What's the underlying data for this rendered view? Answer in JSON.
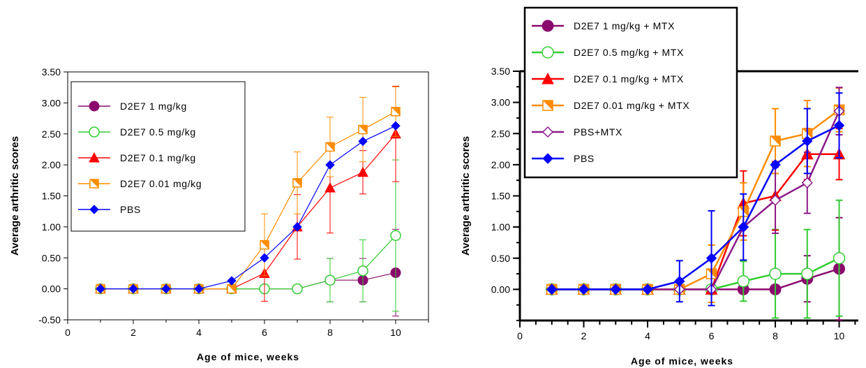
{
  "chart_data": [
    {
      "type": "line",
      "xlabel": "Age of mice, weeks",
      "ylabel": "Average arthritic scores",
      "xlim": [
        0,
        11
      ],
      "ylim": [
        -0.5,
        3.5
      ],
      "xticks": [
        "0",
        "2",
        "4",
        "6",
        "8",
        "10"
      ],
      "yticks": [
        "-0.50",
        "0.00",
        "0.50",
        "1.00",
        "1.50",
        "2.00",
        "2.50",
        "3.00",
        "3.50"
      ],
      "legend_position": "upper-left",
      "x": [
        1,
        2,
        3,
        4,
        5,
        6,
        7,
        8,
        9,
        10
      ],
      "series": [
        {
          "name": "D2E7 1 mg/kg",
          "color": "#8B0A6E",
          "marker": "circle-filled",
          "values": [
            0,
            0,
            0,
            0,
            0,
            0,
            0,
            0.14,
            0.14,
            0.26
          ],
          "error": [
            0,
            0,
            0,
            0,
            0,
            0,
            0,
            0.35,
            0.35,
            0.7
          ]
        },
        {
          "name": "D2E7 0.5 mg/kg",
          "color": "#33CC33",
          "marker": "circle-open",
          "values": [
            0,
            0,
            0,
            0,
            0,
            0,
            0,
            0.14,
            0.29,
            0.86
          ],
          "error": [
            0,
            0,
            0,
            0,
            0,
            0,
            0,
            0.35,
            0.5,
            1.22
          ]
        },
        {
          "name": "D2E7 0.1 mg/kg",
          "color": "#FF0000",
          "marker": "triangle",
          "values": [
            0,
            0,
            0,
            0,
            0,
            0.25,
            1.0,
            1.63,
            1.88,
            2.5
          ],
          "error": [
            0,
            0,
            0,
            0,
            0,
            0.45,
            0.52,
            0.73,
            0.35,
            0.77
          ]
        },
        {
          "name": "D2E7 0.01 mg/kg",
          "color": "#FF8C00",
          "marker": "square-half",
          "values": [
            0,
            0,
            0,
            0,
            0,
            0.71,
            1.71,
            2.29,
            2.57,
            2.86
          ],
          "error": [
            0,
            0,
            0,
            0,
            0,
            0.5,
            0.5,
            0.48,
            0.52,
            0.4
          ]
        },
        {
          "name": "PBS",
          "color": "#0000FF",
          "marker": "diamond",
          "values": [
            0,
            0,
            0,
            0,
            0.13,
            0.5,
            1.0,
            2.0,
            2.38,
            2.63
          ],
          "error": [
            0,
            0,
            0,
            0,
            0,
            0,
            0,
            0,
            0,
            0
          ]
        }
      ]
    },
    {
      "type": "line",
      "xlabel": "Age of mice, weeks",
      "ylabel": "Average arthritic scores",
      "xlim": [
        0,
        10.6
      ],
      "ylim": [
        -0.5,
        3.5
      ],
      "xticks": [
        "0",
        "2",
        "4",
        "6",
        "8",
        "10"
      ],
      "yticks": [
        "0.00",
        "0.50",
        "1.00",
        "1.50",
        "2.00",
        "2.50",
        "3.00",
        "3.50"
      ],
      "legend_position": "upper-left",
      "x": [
        1,
        2,
        3,
        4,
        5,
        6,
        7,
        8,
        9,
        10
      ],
      "series": [
        {
          "name": "D2E7 1 mg/kg + MTX",
          "color": "#8B0A6E",
          "marker": "circle-filled",
          "values": [
            0,
            0,
            0,
            0,
            0,
            0,
            0,
            0,
            0.17,
            0.33
          ],
          "error": [
            0,
            0,
            0,
            0,
            0,
            0,
            0,
            0,
            0.37,
            0.82
          ]
        },
        {
          "name": "D2E7 0.5 mg/kg + MTX",
          "color": "#33CC33",
          "marker": "circle-open",
          "values": [
            0,
            0,
            0,
            0,
            0,
            0,
            0.13,
            0.25,
            0.25,
            0.5
          ],
          "error": [
            0,
            0,
            0,
            0,
            0,
            0,
            0.32,
            0.71,
            0.71,
            0.93
          ]
        },
        {
          "name": "D2E7 0.1 mg/kg + MTX",
          "color": "#FF0000",
          "marker": "triangle",
          "values": [
            0,
            0,
            0,
            0,
            0,
            0,
            1.38,
            1.5,
            2.17,
            2.17
          ],
          "error": [
            0,
            0,
            0,
            0,
            0,
            0,
            0.52,
            0.55,
            0.41,
            0.41
          ]
        },
        {
          "name": "D2E7 0.01 mg/kg + MTX",
          "color": "#FF8C00",
          "marker": "square-half",
          "values": [
            0,
            0,
            0,
            0,
            0,
            0.25,
            1.25,
            2.38,
            2.5,
            2.88
          ],
          "error": [
            0,
            0,
            0,
            0,
            0,
            0.46,
            0.46,
            0.52,
            0.53,
            0.35
          ]
        },
        {
          "name": "PBS+MTX",
          "color": "#8B1A89",
          "marker": "diamond-open",
          "values": [
            0,
            0,
            0,
            0,
            0,
            0,
            1.0,
            1.43,
            1.71,
            2.86
          ],
          "error": [
            0,
            0,
            0,
            0,
            0,
            0,
            0,
            0.53,
            0.49,
            0.38
          ]
        },
        {
          "name": "PBS",
          "color": "#0000FF",
          "marker": "diamond",
          "values": [
            0,
            0,
            0,
            0,
            0.13,
            0.5,
            1.0,
            2.0,
            2.38,
            2.63
          ],
          "error": [
            0,
            0,
            0,
            0,
            0.33,
            0.76,
            0.53,
            0,
            0.52,
            0.52
          ]
        }
      ]
    }
  ]
}
